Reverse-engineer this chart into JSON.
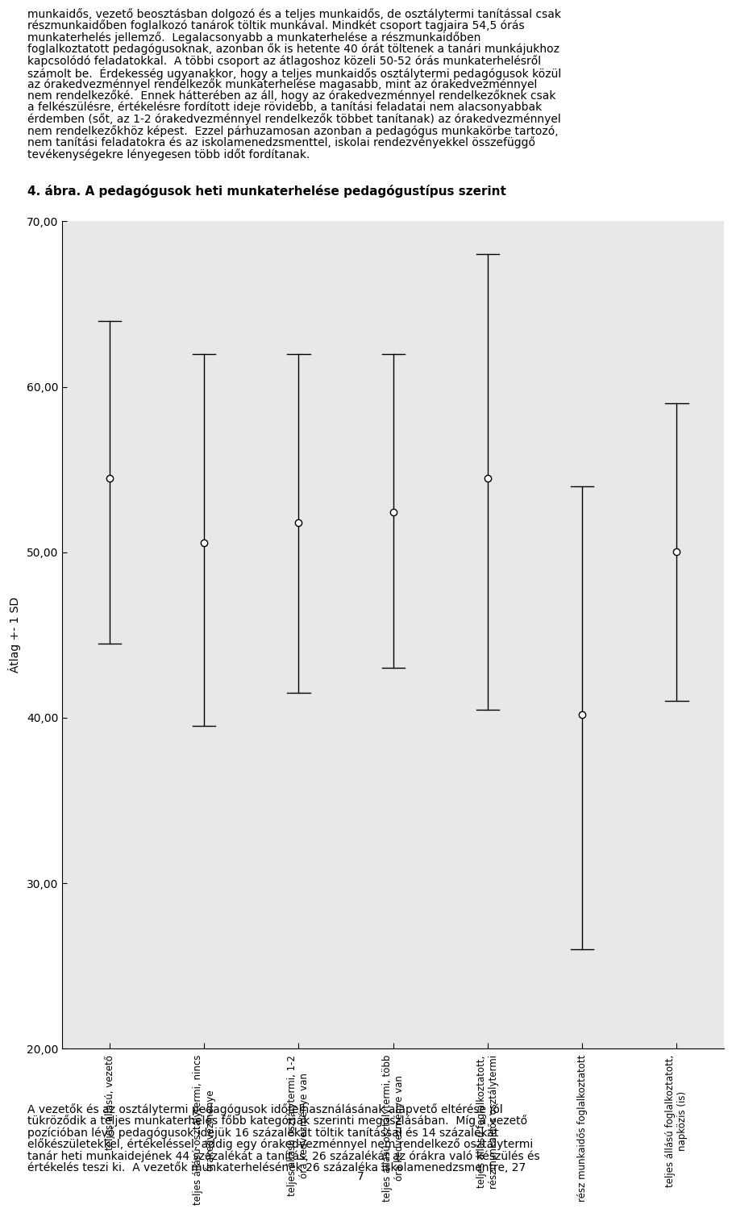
{
  "title_figure": "4. ábra. A pedagógusok heti munkaterhelése pedagógustípus szerint",
  "ylabel": "Átlag +- 1 SD",
  "ylim": [
    20,
    70
  ],
  "yticks": [
    20.0,
    30.0,
    40.0,
    50.0,
    60.0,
    70.0
  ],
  "ytick_labels": [
    "20,00",
    "30,00",
    "40,00",
    "50,00",
    "60,00",
    "70,00"
  ],
  "means": [
    54.49,
    50.57,
    51.8,
    52.41,
    54.48,
    40.18,
    50.05
  ],
  "upper": [
    64.0,
    62.0,
    62.0,
    62.0,
    68.0,
    54.0,
    59.0
  ],
  "lower": [
    44.5,
    39.5,
    41.5,
    43.0,
    40.5,
    26.0,
    41.0
  ],
  "x_labels": [
    "teljes állású, vezető",
    "teljes állású osztálytermi,\nórakedvezménye",
    "teljes állású osztálytermi,\nóra kedvezménye van",
    "teljes állású osztálytermi,\nóra kedvezménye van",
    "teljes állású foglalkoztatott,\nrészmunkaidős osztálytermi",
    "rész munkaidős foglalkoztatott",
    "teljes állású foglalkoztatott,\nnapközis (is)"
  ],
  "x_labels_full": [
    "teljes állású, vezető",
    "teljes állású osztálytermi, nincs\nórakedvezménye",
    "teljes állású osztálytermi, 1-2\nóra kedvezménye van",
    "teljes állású osztálytermi, több\nóra kedvezménye van",
    "teljes állású foglalkoztatott,\nrészmunkaidős osztálytermi",
    "rész munkaidős foglalkoztatott",
    "teljes állású foglalkoztatott,\nnapközis (is)"
  ],
  "background_color": "#e8e8e8",
  "marker_color": "white",
  "marker_edge_color": "black",
  "line_color": "black",
  "font_size": 10,
  "label_font_size": 9,
  "title_font_size": 11,
  "top_text": "munkaidős, vezető beosztásban dolgozó és a teljes munkaidős, de osztálytermi tanítással csak részmunkaidőben foglalkozó tanárok töltik munkavával. Mindkét csoport tagjaira 54,5 órás munkaterhéles jellemző.  Legalacsonyabb a munkaterhélse a részmunkaidőben foglalkoztatott pedagógusoknak, azonban ők is hetente 40 órát töltenek a tanári munkájukhoz kapcsolódó feladatokkal.  A többi csoport az átlagoshoz közeli 50-52 órás munkaterhélről számolt be.  Érdekesség ugyanakkor, hogy a teljes munkaidős osztálytermi pedagógusok közül az órakedvezménnyel rendelkezők munkaterhélse magasabb, mint az órakedvezménnyel nem rendelkezőké.  Ennek hátterében az áll, hogy az órakedvezménnyel rendelkezőknek csak a felkészülésre, értékelésre fordított ideje rövidebb, a tanítási feladatai nem alacsonyabbak érdemben (sőt, az 1-2 órakedvezménnyel rendelkezők többet tanítanak) az órakedvezménnyel nem rendelkezőkhöz képest.  Ezzel párhuzamosan azonban a pedagógus munkákörbe tartozó, nem tanítási feladatokra és az iskolamenedzsmenttel, iskolai rendezvényekkel összefüggő tevékenységekre lényegesen több időt fordítanak.",
  "bottom_text": "A vezetők és az osztálytermi pedagógusok időfelhasználásának alapvető eltérése jól tükröződik a teljes munkaterhélés főbb kategóriák szerinti megoszlásában. Míg a vezető pozícióban lévő pedagógusok idejük 16 százalékát töltik tanítással és 14 százalékát előkészületekkel, értékeléssel, addig egy órakedvezménnyel nem rendelkező osztálytermi tanár heti munkaidejének 44 százalékát a tanítás, 26 százalékát az órákra való készülés és értékelés teszi ki.  A vezetők munkaterhélésének 26 százaléka iskolamenedzsmentre, 27",
  "page_number": "7"
}
